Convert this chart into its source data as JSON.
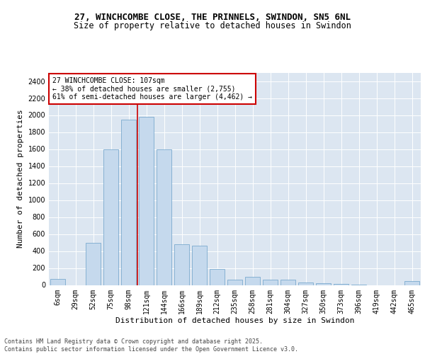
{
  "title_line1": "27, WINCHCOMBE CLOSE, THE PRINNELS, SWINDON, SN5 6NL",
  "title_line2": "Size of property relative to detached houses in Swindon",
  "xlabel": "Distribution of detached houses by size in Swindon",
  "ylabel": "Number of detached properties",
  "categories": [
    "6sqm",
    "29sqm",
    "52sqm",
    "75sqm",
    "98sqm",
    "121sqm",
    "144sqm",
    "166sqm",
    "189sqm",
    "212sqm",
    "235sqm",
    "258sqm",
    "281sqm",
    "304sqm",
    "327sqm",
    "350sqm",
    "373sqm",
    "396sqm",
    "419sqm",
    "442sqm",
    "465sqm"
  ],
  "values": [
    75,
    0,
    500,
    1600,
    1950,
    1980,
    1600,
    480,
    460,
    190,
    65,
    95,
    65,
    60,
    30,
    20,
    12,
    4,
    0,
    0,
    45
  ],
  "bar_color": "#c5d9ed",
  "bar_edge_color": "#6a9fc8",
  "vline_x_index": 4.5,
  "vline_color": "#cc0000",
  "annotation_text": "27 WINCHCOMBE CLOSE: 107sqm\n← 38% of detached houses are smaller (2,755)\n61% of semi-detached houses are larger (4,462) →",
  "annotation_box_color": "#cc0000",
  "ylim": [
    0,
    2500
  ],
  "yticks": [
    0,
    200,
    400,
    600,
    800,
    1000,
    1200,
    1400,
    1600,
    1800,
    2000,
    2200,
    2400
  ],
  "background_color": "#dce6f1",
  "footer_text": "Contains HM Land Registry data © Crown copyright and database right 2025.\nContains public sector information licensed under the Open Government Licence v3.0.",
  "title_fontsize": 9,
  "subtitle_fontsize": 8.5,
  "axis_label_fontsize": 8,
  "tick_fontsize": 7,
  "annotation_fontsize": 7,
  "footer_fontsize": 6
}
